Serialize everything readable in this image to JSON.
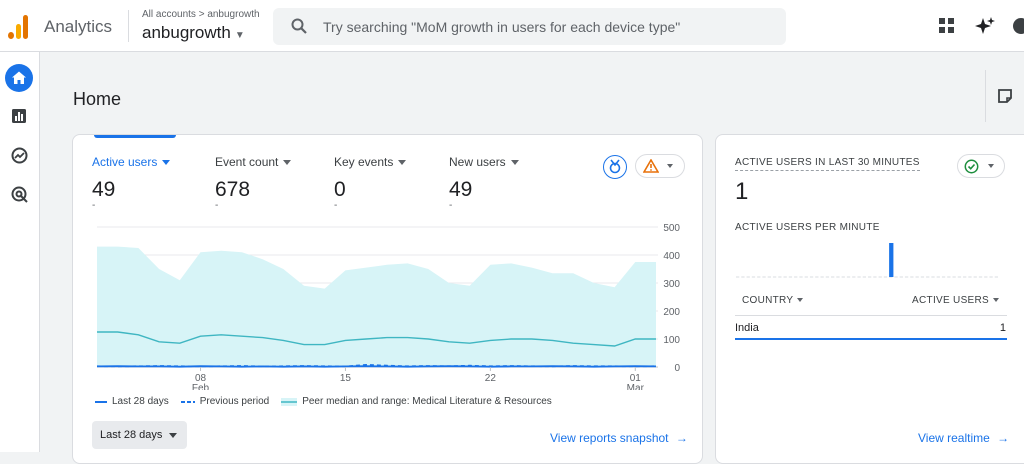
{
  "header": {
    "app_title": "Analytics",
    "breadcrumb": "All accounts > anbugrowth",
    "account_name": "anbugrowth",
    "search_placeholder": "Try searching \"MoM growth in users for each device type\""
  },
  "sidebar": {
    "items": [
      {
        "name": "home",
        "icon": "home-icon",
        "active": true
      },
      {
        "name": "reports",
        "icon": "bar-chart-icon",
        "active": false
      },
      {
        "name": "explore",
        "icon": "explore-icon",
        "active": false
      },
      {
        "name": "advertising",
        "icon": "target-icon",
        "active": false
      }
    ]
  },
  "page": {
    "title": "Home"
  },
  "overview": {
    "metrics": [
      {
        "label": "Active users",
        "value": "49",
        "change": "-",
        "active": true
      },
      {
        "label": "Event count",
        "value": "678",
        "change": "-",
        "active": false
      },
      {
        "label": "Key events",
        "value": "0",
        "change": "-",
        "active": false
      },
      {
        "label": "New users",
        "value": "49",
        "change": "-",
        "active": false
      }
    ],
    "legend": {
      "current": "Last 28 days",
      "previous": "Previous period",
      "peer": "Peer median and range: Medical Literature & Resources"
    },
    "date_range": "Last 28 days",
    "view_link": "View reports snapshot"
  },
  "colors": {
    "accent": "#1a73e8",
    "peer_band": "#d7f4f7",
    "peer_line": "#3fb6c2",
    "warning": "#e8710a",
    "success": "#1e8e3e"
  },
  "chart_data": {
    "type": "line",
    "x_ticks": [
      {
        "day": "08",
        "month": "Feb"
      },
      {
        "day": "15",
        "month": ""
      },
      {
        "day": "22",
        "month": ""
      },
      {
        "day": "01",
        "month": "Mar"
      }
    ],
    "y_ticks": [
      0,
      100,
      200,
      300,
      400,
      500
    ],
    "ylim": [
      0,
      500
    ],
    "dates": [
      "Feb 3",
      "Feb 4",
      "Feb 5",
      "Feb 6",
      "Feb 7",
      "Feb 8",
      "Feb 9",
      "Feb 10",
      "Feb 11",
      "Feb 12",
      "Feb 13",
      "Feb 14",
      "Feb 15",
      "Feb 16",
      "Feb 17",
      "Feb 18",
      "Feb 19",
      "Feb 20",
      "Feb 21",
      "Feb 22",
      "Feb 23",
      "Feb 24",
      "Feb 25",
      "Feb 26",
      "Feb 27",
      "Feb 28",
      "Mar 1",
      "Mar 2"
    ],
    "series": [
      {
        "name": "Last 28 days",
        "style": "solid",
        "values": [
          2,
          3,
          2,
          2,
          1,
          3,
          2,
          1,
          2,
          1,
          2,
          1,
          2,
          3,
          2,
          1,
          2,
          3,
          2,
          1,
          2,
          2,
          3,
          2,
          1,
          2,
          3,
          2
        ]
      },
      {
        "name": "Previous period",
        "style": "dashed",
        "values": [
          3,
          2,
          3,
          4,
          3,
          2,
          3,
          4,
          2,
          3,
          4,
          3,
          2,
          8,
          5,
          3,
          4,
          3,
          5,
          3,
          4,
          3,
          2,
          4,
          3,
          3,
          2,
          3
        ]
      },
      {
        "name": "Peer median and range: Medical Literature & Resources",
        "style": "band",
        "median": [
          125,
          125,
          115,
          90,
          85,
          110,
          115,
          110,
          105,
          95,
          80,
          80,
          95,
          100,
          105,
          105,
          100,
          90,
          85,
          95,
          100,
          100,
          95,
          85,
          80,
          75,
          100,
          100
        ],
        "upper": [
          430,
          430,
          425,
          350,
          310,
          410,
          415,
          410,
          385,
          350,
          290,
          280,
          345,
          355,
          365,
          370,
          350,
          300,
          290,
          365,
          370,
          355,
          335,
          335,
          300,
          285,
          375,
          375
        ],
        "lower": [
          0,
          0,
          0,
          0,
          0,
          0,
          0,
          0,
          0,
          0,
          0,
          0,
          0,
          0,
          0,
          0,
          0,
          0,
          0,
          0,
          0,
          0,
          0,
          0,
          0,
          0,
          0,
          0
        ]
      }
    ]
  },
  "realtime": {
    "title": "ACTIVE USERS IN LAST 30 MINUTES",
    "value": "1",
    "per_minute_label": "ACTIVE USERS PER MINUTE",
    "per_minute": [
      0,
      0,
      0,
      0,
      0,
      0,
      0,
      0,
      0,
      0,
      0,
      0,
      0,
      0,
      0,
      0,
      0,
      0,
      0,
      0,
      0,
      0,
      0,
      0,
      0,
      0,
      0,
      0,
      0,
      1,
      0,
      0,
      0,
      0,
      0,
      0,
      0,
      0,
      0,
      0,
      0,
      0,
      0,
      0,
      0,
      0,
      0,
      0,
      0,
      0
    ],
    "table": {
      "col1": "COUNTRY",
      "col2": "ACTIVE USERS",
      "rows": [
        {
          "country": "India",
          "users": "1"
        }
      ]
    },
    "view_link": "View realtime"
  }
}
